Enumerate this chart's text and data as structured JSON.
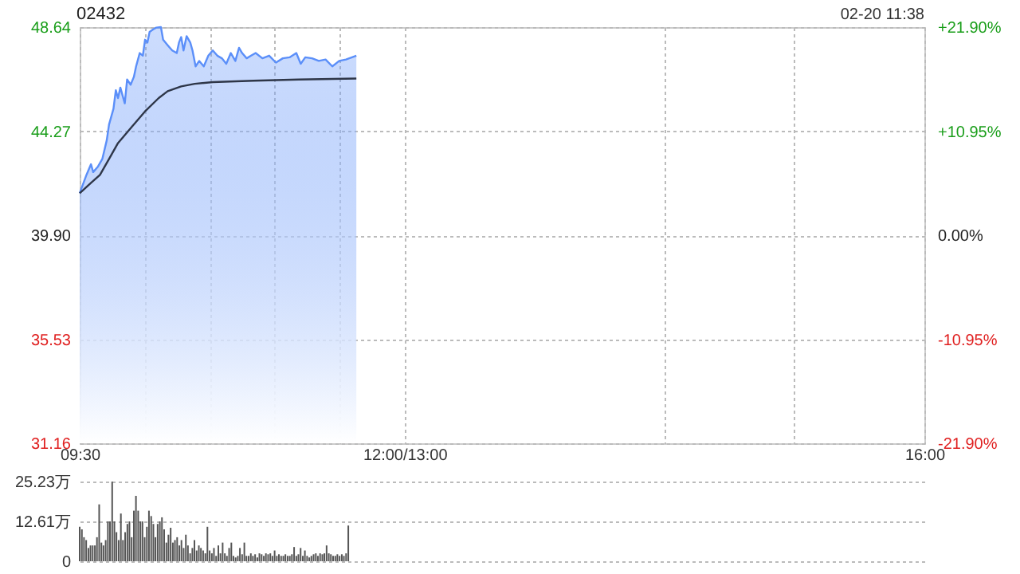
{
  "chart_data": [
    {
      "type": "line",
      "title": "02432",
      "annotations": [
        "02-20 11:38"
      ],
      "xlim": [
        9.5,
        16
      ],
      "xticks": [
        {
          "value": 9.5,
          "label": "09:30"
        },
        {
          "value": 10,
          "label": null
        },
        {
          "value": 10.5,
          "label": null
        },
        {
          "value": 11,
          "label": null
        },
        {
          "value": 11.5,
          "label": null
        },
        {
          "value": 12,
          "label": "12:00/13:00"
        },
        {
          "value": 14,
          "label": null
        },
        {
          "value": 15,
          "label": null
        },
        {
          "value": 16,
          "label": "16:00"
        }
      ],
      "ylim": [
        31.16,
        48.64
      ],
      "yticks": [
        31.16,
        35.53,
        {
          "value": 39.9,
          "label": "39.90"
        },
        44.27,
        48.64
      ],
      "y2lim": [
        -21.9,
        21.9
      ],
      "y2ticks": [
        {
          "value": -21.9,
          "label": "-21.90%"
        },
        {
          "value": -10.95,
          "label": "-10.95%"
        },
        {
          "value": 0,
          "label": "0.00%"
        },
        {
          "value": 10.95,
          "label": "+10.95%"
        },
        {
          "value": 21.9,
          "label": "+21.90%"
        }
      ],
      "grid": true,
      "series": [
        {
          "type": "area",
          "color": "#5b8ff9",
          "x": [
            9.5,
            9.552,
            9.587,
            9.604,
            9.639,
            9.674,
            9.708,
            9.726,
            9.76,
            9.778,
            9.795,
            9.813,
            9.847,
            9.865,
            9.892,
            9.917,
            9.934,
            9.962,
            9.986,
            10.003,
            10.021,
            10.038,
            10.066,
            10.09,
            10.125,
            10.142,
            10.177,
            10.212,
            10.247,
            10.264,
            10.281,
            10.299,
            10.323,
            10.351,
            10.368,
            10.392,
            10.42,
            10.455,
            10.49,
            10.524,
            10.559,
            10.594,
            10.628,
            10.663,
            10.698,
            10.726,
            10.75,
            10.785,
            10.819,
            10.854,
            10.906,
            10.958,
            11.01,
            11.063,
            11.115,
            11.167,
            11.201,
            11.236,
            11.288,
            11.34,
            11.392,
            11.444,
            11.497,
            11.549,
            11.629
          ],
          "values": [
            41.66,
            42.43,
            42.88,
            42.55,
            42.77,
            43.1,
            43.88,
            44.55,
            45.21,
            45.99,
            45.66,
            46.1,
            45.44,
            46.44,
            46.22,
            46.55,
            46.99,
            47.55,
            47.44,
            48.11,
            47.99,
            48.44,
            48.55,
            48.62,
            48.64,
            48.11,
            47.88,
            47.66,
            47.55,
            47.99,
            48.22,
            47.66,
            48.26,
            47.99,
            47.66,
            46.99,
            47.22,
            46.99,
            47.44,
            47.66,
            47.44,
            47.33,
            47.1,
            47.55,
            47.22,
            47.77,
            47.55,
            47.33,
            47.44,
            47.55,
            47.33,
            47.44,
            47.15,
            47.33,
            47.37,
            47.55,
            47.1,
            47.37,
            47.33,
            47.22,
            47.28,
            46.99,
            47.22,
            47.28,
            47.44
          ]
        },
        {
          "type": "line",
          "color": "#2e3648",
          "x": [
            9.5,
            9.587,
            9.656,
            9.726,
            9.795,
            9.899,
            10.003,
            10.108,
            10.177,
            10.281,
            10.385,
            10.524,
            10.837,
            11.184,
            11.629
          ],
          "values": [
            41.66,
            42.1,
            42.43,
            43.1,
            43.77,
            44.44,
            45.1,
            45.66,
            45.95,
            46.15,
            46.26,
            46.33,
            46.39,
            46.44,
            46.48
          ]
        }
      ]
    },
    {
      "type": "bar",
      "color": "#555555",
      "tick_labels": "y",
      "grid": "y",
      "xlim": [
        9.5,
        16
      ],
      "ylim": [
        0,
        25.23
      ],
      "yticks": [
        0,
        {
          "value": 12.61,
          "label": "12.61万"
        },
        {
          "value": 25.23,
          "label": "25.23万"
        }
      ],
      "x": [
        9.5,
        9.517,
        9.533,
        9.55,
        9.567,
        9.583,
        9.6,
        9.617,
        9.633,
        9.65,
        9.667,
        9.683,
        9.7,
        9.717,
        9.733,
        9.75,
        9.767,
        9.783,
        9.8,
        9.817,
        9.833,
        9.85,
        9.867,
        9.883,
        9.9,
        9.917,
        9.933,
        9.95,
        9.967,
        9.983,
        10,
        10.017,
        10.033,
        10.05,
        10.067,
        10.083,
        10.1,
        10.117,
        10.133,
        10.15,
        10.167,
        10.183,
        10.2,
        10.217,
        10.233,
        10.25,
        10.267,
        10.283,
        10.3,
        10.317,
        10.333,
        10.35,
        10.367,
        10.383,
        10.4,
        10.417,
        10.433,
        10.45,
        10.467,
        10.483,
        10.5,
        10.517,
        10.533,
        10.55,
        10.567,
        10.583,
        10.6,
        10.617,
        10.633,
        10.65,
        10.667,
        10.683,
        10.7,
        10.717,
        10.733,
        10.75,
        10.767,
        10.783,
        10.8,
        10.817,
        10.833,
        10.85,
        10.867,
        10.883,
        10.9,
        10.917,
        10.933,
        10.95,
        10.967,
        10.983,
        11,
        11.017,
        11.033,
        11.05,
        11.067,
        11.083,
        11.1,
        11.117,
        11.133,
        11.15,
        11.167,
        11.183,
        11.2,
        11.217,
        11.233,
        11.25,
        11.267,
        11.283,
        11.3,
        11.317,
        11.333,
        11.35,
        11.367,
        11.383,
        11.4,
        11.417,
        11.433,
        11.45,
        11.467,
        11.483,
        11.5,
        11.517,
        11.533,
        11.55,
        11.567
      ],
      "values": [
        10.9,
        10.1,
        7.6,
        6.7,
        4.2,
        5,
        5,
        5,
        7.6,
        18,
        5.9,
        5,
        6.7,
        12.6,
        12.6,
        25.2,
        12.6,
        9.2,
        6.7,
        15.1,
        6.7,
        9.2,
        11.8,
        12.6,
        7.6,
        16,
        20.7,
        16,
        12.6,
        12.6,
        7.6,
        10.9,
        16,
        14.3,
        11.8,
        7.6,
        11.8,
        12.6,
        13.9,
        10.1,
        5.9,
        8.4,
        10.6,
        5.9,
        6.7,
        7.6,
        5,
        6.7,
        4.2,
        8.4,
        5,
        2.5,
        4.2,
        6.7,
        3.4,
        5,
        4.2,
        3.4,
        2.5,
        10.9,
        3.4,
        2.5,
        4.2,
        1.7,
        5,
        2.5,
        5.9,
        2.5,
        1.7,
        4.2,
        5.9,
        1.7,
        1.2,
        1.7,
        4.2,
        2.2,
        5.9,
        1.7,
        1.7,
        2.5,
        1.7,
        2.2,
        1.2,
        2.5,
        2.2,
        1.7,
        2.5,
        2.2,
        2.5,
        1.7,
        3.4,
        1.7,
        2.2,
        1.7,
        1.7,
        2.2,
        1.7,
        1.7,
        2.2,
        4.5,
        1.7,
        2.2,
        4.2,
        1.7,
        3.4,
        1.7,
        1.2,
        1.7,
        2.2,
        2.5,
        1.7,
        2.5,
        2.2,
        2.5,
        5,
        2.5,
        2.2,
        1.7,
        1.7,
        2.2,
        1.7,
        2.2,
        1.7,
        2.5,
        11.3
      ]
    }
  ]
}
